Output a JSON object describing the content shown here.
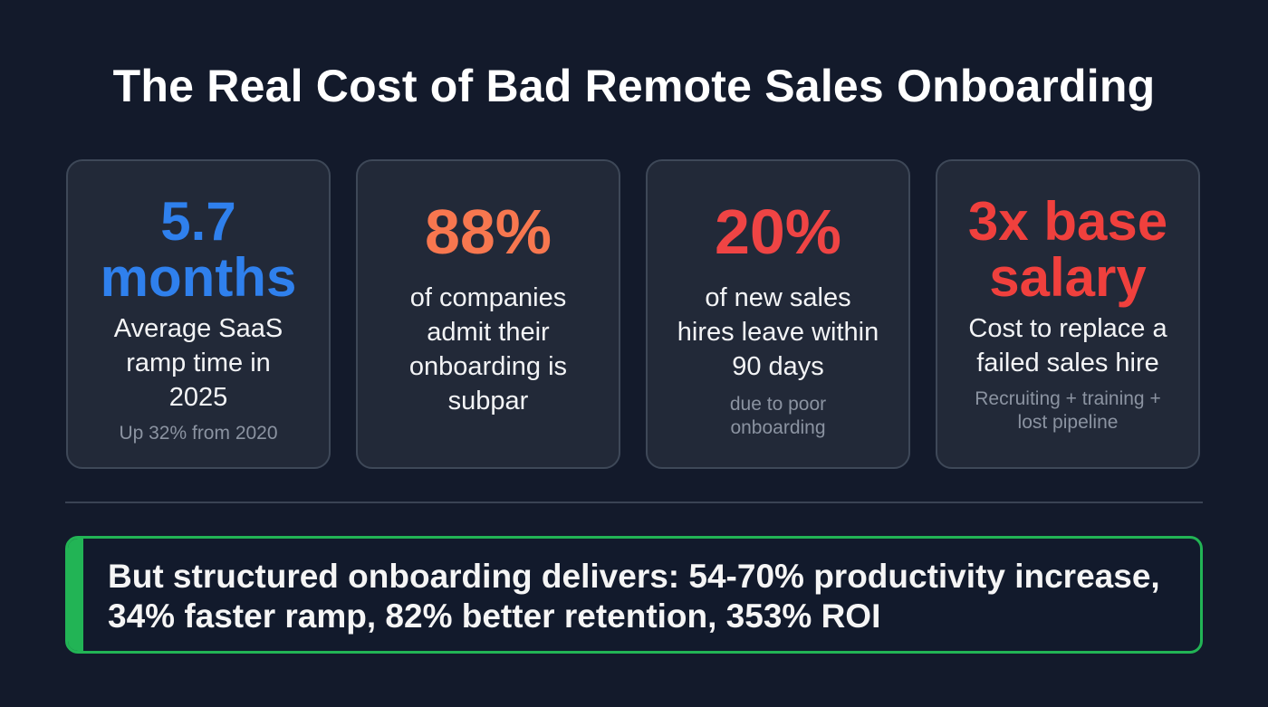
{
  "title": "The Real Cost of Bad Remote Sales Onboarding",
  "colors": {
    "blue": "#2f80ed",
    "orange": "#f7774f",
    "red": "#ef4444",
    "green": "#22b455"
  },
  "cards": [
    {
      "stat_line1": "5.7",
      "stat_line2": "months",
      "label": "Average SaaS ramp time in 2025",
      "sub": "Up 32% from 2020",
      "color": "#2f80ed"
    },
    {
      "stat_line1": "88%",
      "stat_line2": "",
      "label": "of companies admit their onboarding is subpar",
      "sub": "",
      "color": "#f7774f"
    },
    {
      "stat_line1": "20%",
      "stat_line2": "",
      "label": "of new sales hires leave within 90 days",
      "sub": "due to poor onboarding",
      "color": "#ef4444"
    },
    {
      "stat_line1": "3x base",
      "stat_line2": "salary",
      "label": "Cost to replace a failed sales hire",
      "sub": "Recruiting + training + lost pipeline",
      "color": "#ef4444"
    }
  ],
  "callout": "But structured onboarding delivers: 54-70% productivity increase, 34% faster ramp, 82% better retention, 353% ROI"
}
